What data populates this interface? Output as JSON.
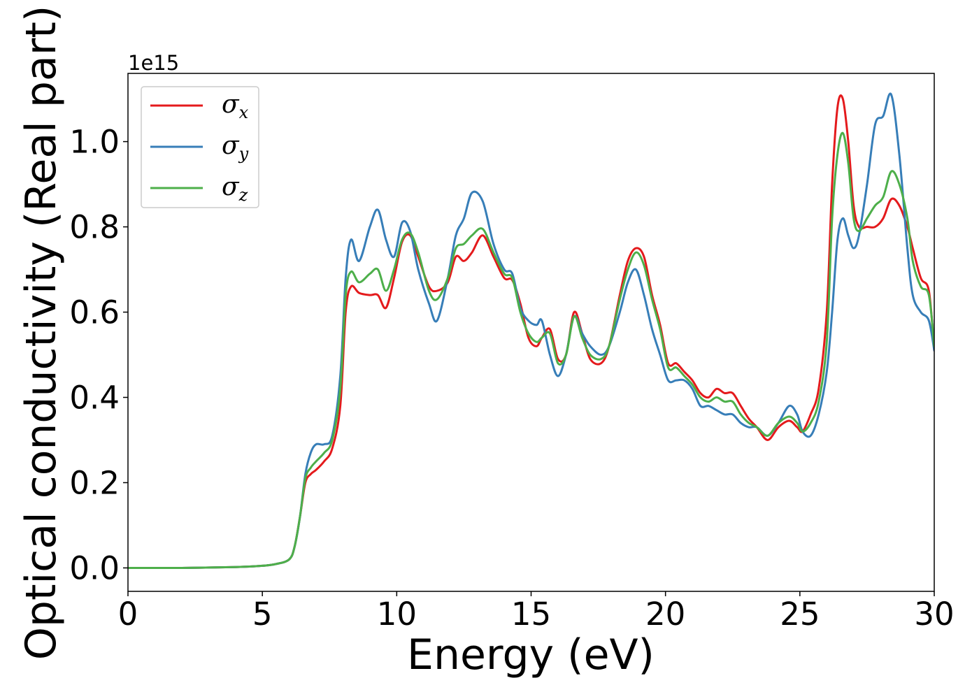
{
  "chart_data": {
    "type": "line",
    "title": "",
    "xlabel": "Energy (eV)",
    "ylabel": "Optical conductivity (Real part)",
    "y_offset_label": "1e15",
    "xlim": [
      0,
      30
    ],
    "ylim": [
      -0.055,
      1.16
    ],
    "x_ticks": [
      0,
      5,
      10,
      15,
      20,
      25,
      30
    ],
    "x_tick_labels": [
      "0",
      "5",
      "10",
      "15",
      "20",
      "25",
      "30"
    ],
    "y_ticks": [
      0.0,
      0.2,
      0.4,
      0.6,
      0.8,
      1.0
    ],
    "y_tick_labels": [
      "0.0",
      "0.2",
      "0.4",
      "0.6",
      "0.8",
      "1.0"
    ],
    "grid": false,
    "legend_position": "top-left",
    "series": [
      {
        "name": "σx",
        "symbol": "σ",
        "subscript": "x",
        "color": "#e41a1c",
        "x": [
          0,
          2,
          4,
          5,
          5.5,
          6,
          6.2,
          6.4,
          6.6,
          6.8,
          7,
          7.3,
          7.6,
          7.9,
          8.1,
          8.3,
          8.6,
          9,
          9.3,
          9.6,
          9.9,
          10.2,
          10.5,
          10.8,
          11.2,
          11.5,
          11.9,
          12.2,
          12.5,
          12.8,
          13.2,
          13.6,
          14,
          14.3,
          14.6,
          14.9,
          15.2,
          15.4,
          15.7,
          16,
          16.3,
          16.6,
          16.9,
          17.2,
          17.6,
          17.9,
          18.3,
          18.6,
          18.9,
          19.2,
          19.5,
          19.8,
          20.1,
          20.4,
          20.7,
          21,
          21.3,
          21.6,
          21.9,
          22.2,
          22.5,
          22.8,
          23.1,
          23.4,
          23.8,
          24.2,
          24.6,
          24.9,
          25.1,
          25.4,
          25.7,
          26,
          26.2,
          26.4,
          26.6,
          26.8,
          27,
          27.2,
          27.5,
          27.8,
          28.1,
          28.4,
          28.7,
          29,
          29.2,
          29.5,
          29.8,
          30
        ],
        "y": [
          0,
          0,
          0.002,
          0.005,
          0.009,
          0.02,
          0.05,
          0.12,
          0.2,
          0.22,
          0.23,
          0.25,
          0.28,
          0.38,
          0.6,
          0.66,
          0.645,
          0.64,
          0.64,
          0.61,
          0.68,
          0.765,
          0.78,
          0.73,
          0.66,
          0.65,
          0.67,
          0.73,
          0.72,
          0.74,
          0.78,
          0.73,
          0.68,
          0.675,
          0.62,
          0.54,
          0.52,
          0.54,
          0.56,
          0.49,
          0.5,
          0.6,
          0.55,
          0.49,
          0.48,
          0.52,
          0.64,
          0.72,
          0.75,
          0.73,
          0.64,
          0.57,
          0.48,
          0.48,
          0.46,
          0.44,
          0.41,
          0.4,
          0.42,
          0.41,
          0.41,
          0.38,
          0.35,
          0.33,
          0.3,
          0.33,
          0.345,
          0.33,
          0.32,
          0.36,
          0.42,
          0.6,
          0.9,
          1.08,
          1.1,
          1.0,
          0.85,
          0.8,
          0.8,
          0.8,
          0.82,
          0.865,
          0.85,
          0.8,
          0.75,
          0.68,
          0.65,
          0.51
        ]
      },
      {
        "name": "σy",
        "symbol": "σ",
        "subscript": "y",
        "color": "#377eb8",
        "x": [
          0,
          2,
          4,
          5,
          5.5,
          6,
          6.2,
          6.4,
          6.6,
          6.8,
          7,
          7.3,
          7.6,
          7.9,
          8.1,
          8.3,
          8.6,
          9,
          9.3,
          9.6,
          9.9,
          10.2,
          10.5,
          10.8,
          11.2,
          11.5,
          11.9,
          12.2,
          12.5,
          12.8,
          13.2,
          13.6,
          14,
          14.3,
          14.6,
          14.9,
          15.2,
          15.4,
          15.7,
          16,
          16.3,
          16.6,
          16.9,
          17.2,
          17.6,
          17.9,
          18.3,
          18.6,
          18.9,
          19.2,
          19.5,
          19.8,
          20.1,
          20.4,
          20.7,
          21,
          21.3,
          21.6,
          21.9,
          22.2,
          22.5,
          22.8,
          23.1,
          23.4,
          23.8,
          24.2,
          24.6,
          24.9,
          25.1,
          25.4,
          25.7,
          26,
          26.2,
          26.4,
          26.6,
          26.8,
          27,
          27.2,
          27.5,
          27.8,
          28.1,
          28.4,
          28.7,
          29,
          29.2,
          29.5,
          29.8,
          30
        ],
        "y": [
          0,
          0,
          0.002,
          0.005,
          0.009,
          0.02,
          0.05,
          0.12,
          0.22,
          0.27,
          0.29,
          0.29,
          0.31,
          0.45,
          0.68,
          0.77,
          0.72,
          0.8,
          0.84,
          0.77,
          0.73,
          0.81,
          0.79,
          0.7,
          0.62,
          0.58,
          0.68,
          0.78,
          0.82,
          0.88,
          0.86,
          0.76,
          0.7,
          0.69,
          0.61,
          0.58,
          0.57,
          0.58,
          0.5,
          0.45,
          0.5,
          0.59,
          0.55,
          0.52,
          0.5,
          0.52,
          0.6,
          0.67,
          0.7,
          0.64,
          0.56,
          0.5,
          0.44,
          0.44,
          0.44,
          0.42,
          0.38,
          0.38,
          0.37,
          0.36,
          0.36,
          0.34,
          0.33,
          0.33,
          0.31,
          0.34,
          0.38,
          0.36,
          0.32,
          0.31,
          0.36,
          0.46,
          0.6,
          0.77,
          0.82,
          0.78,
          0.75,
          0.78,
          0.9,
          1.04,
          1.06,
          1.11,
          0.97,
          0.75,
          0.64,
          0.6,
          0.58,
          0.51
        ]
      },
      {
        "name": "σz",
        "symbol": "σ",
        "subscript": "z",
        "color": "#4daf4a",
        "x": [
          0,
          2,
          4,
          5,
          5.5,
          6,
          6.2,
          6.4,
          6.6,
          6.8,
          7,
          7.3,
          7.6,
          7.9,
          8.1,
          8.3,
          8.6,
          9,
          9.3,
          9.6,
          9.9,
          10.2,
          10.5,
          10.8,
          11.2,
          11.5,
          11.9,
          12.2,
          12.5,
          12.8,
          13.2,
          13.6,
          14,
          14.3,
          14.6,
          14.9,
          15.2,
          15.4,
          15.7,
          16,
          16.3,
          16.6,
          16.9,
          17.2,
          17.6,
          17.9,
          18.3,
          18.6,
          18.9,
          19.2,
          19.5,
          19.8,
          20.1,
          20.4,
          20.7,
          21,
          21.3,
          21.6,
          21.9,
          22.2,
          22.5,
          22.8,
          23.1,
          23.4,
          23.8,
          24.2,
          24.6,
          24.9,
          25.1,
          25.4,
          25.7,
          26,
          26.2,
          26.4,
          26.6,
          26.8,
          27,
          27.2,
          27.5,
          27.8,
          28.1,
          28.4,
          28.7,
          29,
          29.2,
          29.5,
          29.8,
          30
        ],
        "y": [
          0,
          0,
          0.002,
          0.005,
          0.009,
          0.02,
          0.05,
          0.12,
          0.21,
          0.235,
          0.25,
          0.27,
          0.3,
          0.42,
          0.64,
          0.695,
          0.67,
          0.69,
          0.7,
          0.65,
          0.7,
          0.77,
          0.785,
          0.74,
          0.65,
          0.63,
          0.68,
          0.75,
          0.76,
          0.78,
          0.795,
          0.74,
          0.69,
          0.68,
          0.6,
          0.55,
          0.53,
          0.54,
          0.55,
          0.48,
          0.5,
          0.59,
          0.54,
          0.5,
          0.49,
          0.52,
          0.63,
          0.7,
          0.74,
          0.71,
          0.63,
          0.56,
          0.47,
          0.47,
          0.45,
          0.43,
          0.4,
          0.39,
          0.4,
          0.39,
          0.39,
          0.36,
          0.34,
          0.33,
          0.31,
          0.34,
          0.355,
          0.34,
          0.32,
          0.34,
          0.39,
          0.53,
          0.82,
          0.97,
          1.02,
          0.95,
          0.82,
          0.79,
          0.82,
          0.85,
          0.87,
          0.93,
          0.9,
          0.82,
          0.72,
          0.66,
          0.64,
          0.52
        ]
      }
    ]
  }
}
